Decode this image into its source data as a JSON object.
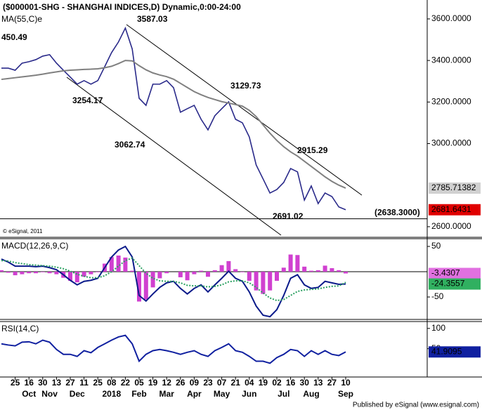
{
  "chart_data": [
    {
      "type": "line",
      "title": "($000001-SHG - SHANGHAI INDICES,D) Dynamic,0:00-24:00",
      "copyright": "© eSignal, 2011",
      "ylim": [
        2549,
        3691
      ],
      "yticks": [
        {
          "value": 3600,
          "label": "3600.0000"
        },
        {
          "value": 3400,
          "label": "3400.0000"
        },
        {
          "value": 3200,
          "label": "3200.0000"
        },
        {
          "value": 3000,
          "label": "3000.0000"
        },
        {
          "value": 2600,
          "label": "2600.0000"
        }
      ],
      "annotations": [
        "3587.03",
        "450.49",
        "3254.17",
        "3062.74",
        "3129.73",
        "2915.29",
        "2691.02"
      ],
      "level": {
        "value": 2638.3,
        "label": "(2638.3000)"
      },
      "series": [
        {
          "name": "SHANGHAI INDICES",
          "color": "#2a2a8a",
          "values": [
            3363,
            3363,
            3353,
            3387,
            3394,
            3404,
            3421,
            3428,
            3387,
            3353,
            3320,
            3286,
            3303,
            3286,
            3303,
            3370,
            3438,
            3489,
            3556,
            3455,
            3218,
            3184,
            3286,
            3286,
            3303,
            3269,
            3151,
            3168,
            3184,
            3117,
            3066,
            3134,
            3168,
            3201,
            3117,
            3100,
            3032,
            2897,
            2830,
            2762,
            2779,
            2813,
            2880,
            2864,
            2728,
            2796,
            2711,
            2762,
            2745,
            2695,
            2681.6431
          ]
        },
        {
          "name": "MA(55,C)e",
          "color": "#808080",
          "values": [
            3309,
            3313,
            3317,
            3321,
            3325,
            3329,
            3334,
            3340,
            3345,
            3350,
            3353,
            3355,
            3357,
            3358,
            3360,
            3365,
            3372,
            3385,
            3400,
            3398,
            3375,
            3355,
            3340,
            3330,
            3322,
            3310,
            3290,
            3270,
            3250,
            3235,
            3222,
            3212,
            3202,
            3195,
            3188,
            3180,
            3160,
            3130,
            3090,
            3050,
            3015,
            2985,
            2960,
            2940,
            2915,
            2890,
            2865,
            2840,
            2818,
            2800,
            2785.71382
          ]
        }
      ]
    },
    {
      "type": "line",
      "title": "MACD(12,26,9,C)",
      "ylim": [
        -94.4,
        65.3
      ],
      "yticks": [
        50,
        -50
      ],
      "series": [
        {
          "name": "Histogram",
          "type": "bar",
          "color": "#d040d0",
          "values": [
            3,
            -2,
            -7,
            -5,
            -3,
            -3,
            -1,
            -3,
            -5,
            -12,
            -18,
            -21,
            -10,
            -5,
            -1,
            16,
            29,
            32,
            28,
            2,
            -59,
            -55,
            -31,
            -13,
            -3,
            0,
            -11,
            -17,
            -5,
            2,
            -10,
            3,
            13,
            21,
            5,
            -1,
            -18,
            -37,
            -44,
            -37,
            -18,
            8,
            34,
            33,
            10,
            2,
            3,
            12,
            7,
            3,
            -3.4307
          ]
        },
        {
          "name": "MACD",
          "color": "#0a1a8a",
          "values": [
            25,
            19,
            11,
            11,
            11,
            10,
            11,
            8,
            4,
            -6,
            -17,
            -26,
            -19,
            -17,
            -13,
            8,
            29,
            43,
            50,
            29,
            -47,
            -58,
            -44,
            -31,
            -22,
            -19,
            -33,
            -44,
            -33,
            -26,
            -40,
            -26,
            -13,
            1,
            -13,
            -19,
            -40,
            -68,
            -86,
            -89,
            -75,
            -47,
            -13,
            -6,
            -26,
            -33,
            -31,
            -19,
            -22,
            -25,
            -24.3557
          ]
        },
        {
          "name": "Signal",
          "color": "#2aa060",
          "dashed": true,
          "values": [
            22,
            21,
            18,
            16,
            14,
            13,
            12,
            11,
            9,
            6,
            1,
            -5,
            -9,
            -12,
            -12,
            -8,
            0,
            11,
            22,
            27,
            12,
            -3,
            -13,
            -18,
            -19,
            -19,
            -22,
            -27,
            -28,
            -28,
            -30,
            -29,
            -26,
            -20,
            -18,
            -18,
            -22,
            -31,
            -42,
            -52,
            -57,
            -55,
            -47,
            -39,
            -36,
            -35,
            -34,
            -31,
            -29,
            -28,
            -20.925
          ]
        }
      ]
    },
    {
      "type": "line",
      "title": "RSI(14,C)",
      "ylim": [
        -20,
        117
      ],
      "yticks": [
        100,
        50
      ],
      "categories": [
        null,
        null,
        "25",
        null,
        "16",
        null,
        "30",
        null,
        "13",
        null,
        "27",
        null,
        "11",
        null,
        "25",
        null,
        "08",
        null,
        "22",
        null,
        "05",
        null,
        "19",
        null,
        "12",
        null,
        "26",
        null,
        "09",
        null,
        "23",
        null,
        "07",
        null,
        "21",
        null,
        "04",
        null,
        "19",
        null,
        "02",
        null,
        "16",
        null,
        "30",
        null,
        "13",
        null,
        "27",
        null,
        "10"
      ],
      "months": [
        null,
        null,
        null,
        null,
        "Oct",
        null,
        null,
        "Nov",
        null,
        null,
        null,
        "Dec",
        null,
        null,
        null,
        null,
        "2018",
        null,
        null,
        null,
        "Feb",
        null,
        null,
        null,
        "Mar",
        null,
        null,
        null,
        "Apr",
        null,
        null,
        null,
        "May",
        null,
        null,
        null,
        "Jun",
        null,
        null,
        null,
        null,
        "Jul",
        null,
        null,
        null,
        "Aug",
        null,
        null,
        null,
        null,
        "Sep"
      ],
      "footer": "Published by eSignal (www.esignal.com)",
      "series": [
        {
          "name": "RSI",
          "color": "#1020a0",
          "values": [
            62,
            59,
            57,
            66,
            67,
            62,
            71,
            66,
            48,
            36,
            36,
            31,
            45,
            40,
            53,
            62,
            71,
            79,
            83,
            62,
            19,
            36,
            45,
            48,
            45,
            41,
            36,
            41,
            45,
            36,
            31,
            45,
            53,
            62,
            45,
            41,
            31,
            19,
            19,
            14,
            28,
            36,
            48,
            45,
            31,
            45,
            36,
            45,
            36,
            33,
            41.9095
          ]
        }
      ]
    }
  ]
}
